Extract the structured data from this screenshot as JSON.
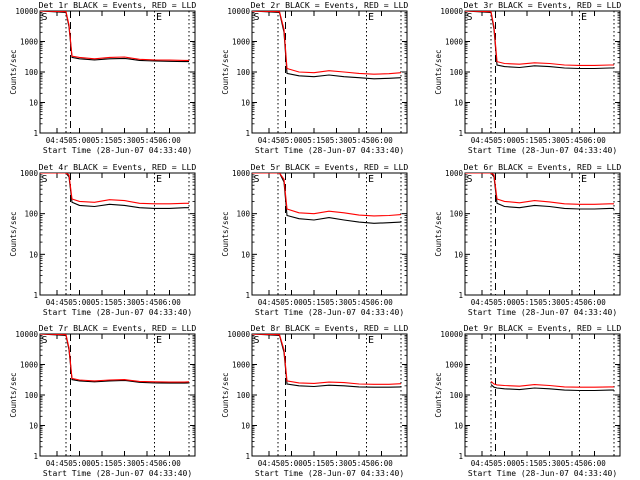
{
  "page": {
    "title_suffix": "BLACK = Events, RED = LLD",
    "xlabel": "Start Time (28-Jun-07 04:33:40)",
    "ylabel": "Counts/sec"
  },
  "colors": {
    "events": "#000000",
    "lld": "#ff0000",
    "axes": "#000000",
    "background": "#ffffff"
  },
  "chart_data": [
    {
      "type": "line",
      "title": "Det 1r BLACK = Events, RED = LLD",
      "xlabel": "Start Time (28-Jun-07 04:33:40)",
      "ylabel": "Counts/sec",
      "yscale": "log",
      "ylim": [
        1,
        10000
      ],
      "xlim": [
        "04:33:40",
        "06:17:00"
      ],
      "xticks": [
        "04:45",
        "05:00",
        "05:15",
        "05:30",
        "05:45",
        "06:00"
      ],
      "yticks": [
        "1",
        "10",
        "100",
        "1000",
        "10000"
      ],
      "marker_S": "S",
      "marker_E": "E",
      "dashed_line": "04:54",
      "dotted_lines": [
        "04:51",
        "05:50",
        "06:13"
      ],
      "series": [
        {
          "name": "Events",
          "x": [
            "04:33:40",
            "04:51",
            "04:53",
            "04:55",
            "05:00",
            "05:10",
            "05:20",
            "05:30",
            "05:40",
            "05:50",
            "06:00",
            "06:10",
            "06:13"
          ],
          "y": [
            10000,
            9000,
            3000,
            300,
            270,
            250,
            270,
            280,
            240,
            230,
            225,
            220,
            220
          ]
        },
        {
          "name": "LLD",
          "x": [
            "04:33:40",
            "04:51",
            "04:53",
            "04:55",
            "05:00",
            "05:10",
            "05:20",
            "05:30",
            "05:40",
            "05:50",
            "06:00",
            "06:10",
            "06:13"
          ],
          "y": [
            10000,
            9500,
            3500,
            330,
            300,
            270,
            300,
            310,
            260,
            250,
            245,
            240,
            240
          ]
        }
      ]
    },
    {
      "type": "line",
      "title": "Det 2r BLACK = Events, RED = LLD",
      "xlabel": "Start Time (28-Jun-07 04:33:40)",
      "ylabel": "Counts/sec",
      "yscale": "log",
      "ylim": [
        1,
        10000
      ],
      "xlim": [
        "04:33:40",
        "06:17:00"
      ],
      "xticks": [
        "04:45",
        "05:00",
        "05:15",
        "05:30",
        "05:45",
        "06:00"
      ],
      "yticks": [
        "1",
        "10",
        "100",
        "1000",
        "10000"
      ],
      "marker_S": "S",
      "marker_E": "E",
      "dashed_line": "04:56",
      "dotted_lines": [
        "04:51",
        "05:50",
        "06:13"
      ],
      "series": [
        {
          "name": "Events",
          "x": [
            "04:33:40",
            "04:52",
            "04:55",
            "04:57",
            "05:05",
            "05:15",
            "05:25",
            "05:35",
            "05:45",
            "05:55",
            "06:05",
            "06:13"
          ],
          "y": [
            10000,
            9000,
            2000,
            90,
            75,
            70,
            80,
            70,
            65,
            60,
            62,
            65
          ]
        },
        {
          "name": "LLD",
          "x": [
            "04:33:40",
            "04:52",
            "04:55",
            "04:57",
            "05:05",
            "05:15",
            "05:25",
            "05:35",
            "05:45",
            "05:55",
            "06:05",
            "06:13"
          ],
          "y": [
            10000,
            9500,
            2500,
            130,
            100,
            95,
            110,
            100,
            90,
            85,
            88,
            95
          ]
        }
      ]
    },
    {
      "type": "line",
      "title": "Det 3r BLACK = Events, RED = LLD",
      "xlabel": "Start Time (28-Jun-07 04:33:40)",
      "ylabel": "Counts/sec",
      "yscale": "log",
      "ylim": [
        1,
        10000
      ],
      "xlim": [
        "04:33:40",
        "06:17:00"
      ],
      "xticks": [
        "04:45",
        "05:00",
        "05:15",
        "05:30",
        "05:45",
        "06:00"
      ],
      "yticks": [
        "1",
        "10",
        "100",
        "1000",
        "10000"
      ],
      "marker_S": "S",
      "marker_E": "E",
      "dashed_line": "04:54",
      "dotted_lines": [
        "04:51",
        "05:50",
        "06:13"
      ],
      "series": [
        {
          "name": "Events",
          "x": [
            "04:33:40",
            "04:51",
            "04:53",
            "04:55",
            "05:00",
            "05:10",
            "05:20",
            "05:30",
            "05:40",
            "05:50",
            "06:00",
            "06:10",
            "06:13"
          ],
          "y": [
            10000,
            9000,
            2500,
            170,
            150,
            140,
            160,
            150,
            135,
            130,
            130,
            135,
            135
          ]
        },
        {
          "name": "LLD",
          "x": [
            "04:33:40",
            "04:51",
            "04:53",
            "04:55",
            "05:00",
            "05:10",
            "05:20",
            "05:30",
            "05:40",
            "05:50",
            "06:00",
            "06:10",
            "06:13"
          ],
          "y": [
            10000,
            9500,
            3000,
            220,
            190,
            180,
            200,
            190,
            170,
            165,
            165,
            170,
            170
          ]
        }
      ]
    },
    {
      "type": "line",
      "title": "Det 4r BLACK = Events, RED = LLD",
      "xlabel": "Start Time (28-Jun-07 04:33:40)",
      "ylabel": "Counts/sec",
      "yscale": "log",
      "ylim": [
        1,
        1000
      ],
      "xlim": [
        "04:33:40",
        "06:17:00"
      ],
      "xticks": [
        "04:45",
        "05:00",
        "05:15",
        "05:30",
        "05:45",
        "06:00"
      ],
      "yticks": [
        "1",
        "10",
        "100",
        "1000"
      ],
      "marker_S": "S",
      "marker_E": "E",
      "dashed_line": "04:54",
      "dotted_lines": [
        "04:51",
        "05:50",
        "06:13"
      ],
      "series": [
        {
          "name": "Events",
          "x": [
            "04:33:40",
            "04:51",
            "04:53",
            "04:55",
            "05:00",
            "05:10",
            "05:20",
            "05:30",
            "05:40",
            "05:50",
            "06:00",
            "06:10",
            "06:13"
          ],
          "y": [
            1000,
            1000,
            800,
            190,
            160,
            150,
            170,
            160,
            140,
            135,
            135,
            140,
            140
          ]
        },
        {
          "name": "LLD",
          "x": [
            "04:33:40",
            "04:51",
            "04:53",
            "04:55",
            "05:00",
            "05:10",
            "05:20",
            "05:30",
            "05:40",
            "05:50",
            "06:00",
            "06:10",
            "06:13"
          ],
          "y": [
            1000,
            1000,
            900,
            230,
            200,
            190,
            220,
            210,
            180,
            175,
            175,
            180,
            180
          ]
        }
      ]
    },
    {
      "type": "line",
      "title": "Det 5r BLACK = Events, RED = LLD",
      "xlabel": "Start Time (28-Jun-07 04:33:40)",
      "ylabel": "Counts/sec",
      "yscale": "log",
      "ylim": [
        1,
        1000
      ],
      "xlim": [
        "04:33:40",
        "06:17:00"
      ],
      "xticks": [
        "04:45",
        "05:00",
        "05:15",
        "05:30",
        "05:45",
        "06:00"
      ],
      "yticks": [
        "1",
        "10",
        "100",
        "1000"
      ],
      "marker_S": "S",
      "marker_E": "E",
      "dashed_line": "04:56",
      "dotted_lines": [
        "04:51",
        "05:50",
        "06:13"
      ],
      "series": [
        {
          "name": "Events",
          "x": [
            "04:33:40",
            "04:52",
            "04:55",
            "04:57",
            "05:05",
            "05:15",
            "05:25",
            "05:35",
            "05:45",
            "05:55",
            "06:05",
            "06:13"
          ],
          "y": [
            1000,
            1000,
            600,
            90,
            75,
            70,
            80,
            70,
            62,
            58,
            60,
            62
          ]
        },
        {
          "name": "LLD",
          "x": [
            "04:33:40",
            "04:52",
            "04:55",
            "04:57",
            "05:05",
            "05:15",
            "05:25",
            "05:35",
            "05:45",
            "05:55",
            "06:05",
            "06:13"
          ],
          "y": [
            1000,
            1000,
            700,
            130,
            105,
            100,
            115,
            105,
            92,
            88,
            90,
            95
          ]
        }
      ]
    },
    {
      "type": "line",
      "title": "Det 6r BLACK = Events, RED = LLD",
      "xlabel": "Start Time (28-Jun-07 04:33:40)",
      "ylabel": "Counts/sec",
      "yscale": "log",
      "ylim": [
        1,
        1000
      ],
      "xlim": [
        "04:33:40",
        "06:17:00"
      ],
      "xticks": [
        "04:45",
        "05:00",
        "05:15",
        "05:30",
        "05:45",
        "06:00"
      ],
      "yticks": [
        "1",
        "10",
        "100",
        "1000"
      ],
      "marker_S": "S",
      "marker_E": "E",
      "dashed_line": "04:54",
      "dotted_lines": [
        "04:51",
        "05:50",
        "06:13"
      ],
      "series": [
        {
          "name": "Events",
          "x": [
            "04:33:40",
            "04:51",
            "04:53",
            "04:55",
            "05:00",
            "05:10",
            "05:20",
            "05:30",
            "05:40",
            "05:50",
            "06:00",
            "06:10",
            "06:13"
          ],
          "y": [
            1000,
            1000,
            800,
            180,
            150,
            140,
            160,
            150,
            135,
            130,
            130,
            135,
            135
          ]
        },
        {
          "name": "LLD",
          "x": [
            "04:33:40",
            "04:51",
            "04:53",
            "04:55",
            "05:00",
            "05:10",
            "05:20",
            "05:30",
            "05:40",
            "05:50",
            "06:00",
            "06:10",
            "06:13"
          ],
          "y": [
            1000,
            1000,
            900,
            230,
            200,
            185,
            210,
            195,
            175,
            170,
            170,
            175,
            175
          ]
        }
      ]
    },
    {
      "type": "line",
      "title": "Det 7r BLACK = Events, RED = LLD",
      "xlabel": "Start Time (28-Jun-07 04:33:40)",
      "ylabel": "Counts/sec",
      "yscale": "log",
      "ylim": [
        1,
        10000
      ],
      "xlim": [
        "04:33:40",
        "06:17:00"
      ],
      "xticks": [
        "04:45",
        "05:00",
        "05:15",
        "05:30",
        "05:45",
        "06:00"
      ],
      "yticks": [
        "1",
        "10",
        "100",
        "1000",
        "10000"
      ],
      "marker_S": "S",
      "marker_E": "E",
      "dashed_line": "04:54",
      "dotted_lines": [
        "04:51",
        "05:50",
        "06:13"
      ],
      "series": [
        {
          "name": "Events",
          "x": [
            "04:33:40",
            "04:51",
            "04:53",
            "04:55",
            "05:00",
            "05:10",
            "05:20",
            "05:30",
            "05:40",
            "05:50",
            "06:00",
            "06:10",
            "06:13"
          ],
          "y": [
            10000,
            9000,
            3000,
            320,
            290,
            270,
            290,
            300,
            260,
            250,
            245,
            245,
            250
          ]
        },
        {
          "name": "LLD",
          "x": [
            "04:33:40",
            "04:51",
            "04:53",
            "04:55",
            "05:00",
            "05:10",
            "05:20",
            "05:30",
            "05:40",
            "05:50",
            "06:00",
            "06:10",
            "06:13"
          ],
          "y": [
            10000,
            9500,
            3500,
            350,
            310,
            290,
            310,
            320,
            280,
            270,
            265,
            265,
            270
          ]
        }
      ]
    },
    {
      "type": "line",
      "title": "Det 8r BLACK = Events, RED = LLD",
      "xlabel": "Start Time (28-Jun-07 04:33:40)",
      "ylabel": "Counts/sec",
      "yscale": "log",
      "ylim": [
        1,
        10000
      ],
      "xlim": [
        "04:33:40",
        "06:17:00"
      ],
      "xticks": [
        "04:45",
        "05:00",
        "05:15",
        "05:30",
        "05:45",
        "06:00"
      ],
      "yticks": [
        "1",
        "10",
        "100",
        "1000",
        "10000"
      ],
      "marker_S": "S",
      "marker_E": "E",
      "dashed_line": "04:56",
      "dotted_lines": [
        "04:51",
        "05:50",
        "06:13"
      ],
      "series": [
        {
          "name": "Events",
          "x": [
            "04:33:40",
            "04:52",
            "04:55",
            "04:57",
            "05:05",
            "05:15",
            "05:25",
            "05:35",
            "05:45",
            "05:55",
            "06:05",
            "06:13"
          ],
          "y": [
            10000,
            9000,
            2500,
            230,
            200,
            190,
            210,
            200,
            185,
            180,
            180,
            185
          ]
        },
        {
          "name": "LLD",
          "x": [
            "04:33:40",
            "04:52",
            "04:55",
            "04:57",
            "05:05",
            "05:15",
            "05:25",
            "05:35",
            "05:45",
            "05:55",
            "06:05",
            "06:13"
          ],
          "y": [
            10000,
            9500,
            3000,
            290,
            250,
            240,
            265,
            255,
            230,
            225,
            225,
            235
          ]
        }
      ]
    },
    {
      "type": "line",
      "title": "Det 9r BLACK = Events, RED = LLD",
      "xlabel": "Start Time (28-Jun-07 04:33:40)",
      "ylabel": "Counts/sec",
      "yscale": "log",
      "ylim": [
        1,
        10000
      ],
      "xlim": [
        "04:33:40",
        "06:17:00"
      ],
      "xticks": [
        "04:45",
        "05:00",
        "05:15",
        "05:30",
        "05:45",
        "06:00"
      ],
      "yticks": [
        "1",
        "10",
        "100",
        "1000",
        "10000"
      ],
      "marker_S": "",
      "marker_E": "",
      "dashed_line": "04:54",
      "dotted_lines": [
        "04:51",
        "05:50",
        "06:13"
      ],
      "series": [
        {
          "name": "Events",
          "x": [
            "04:51",
            "04:53",
            "04:55",
            "05:00",
            "05:10",
            "05:20",
            "05:30",
            "05:40",
            "05:50",
            "06:00",
            "06:10",
            "06:13"
          ],
          "y": [
            220,
            180,
            170,
            160,
            150,
            170,
            160,
            145,
            140,
            140,
            145,
            145
          ]
        },
        {
          "name": "LLD",
          "x": [
            "04:51",
            "04:53",
            "04:55",
            "05:00",
            "05:10",
            "05:20",
            "05:30",
            "05:40",
            "05:50",
            "06:00",
            "06:10",
            "06:13"
          ],
          "y": [
            280,
            230,
            215,
            205,
            195,
            220,
            205,
            185,
            180,
            180,
            185,
            185
          ]
        }
      ]
    }
  ]
}
